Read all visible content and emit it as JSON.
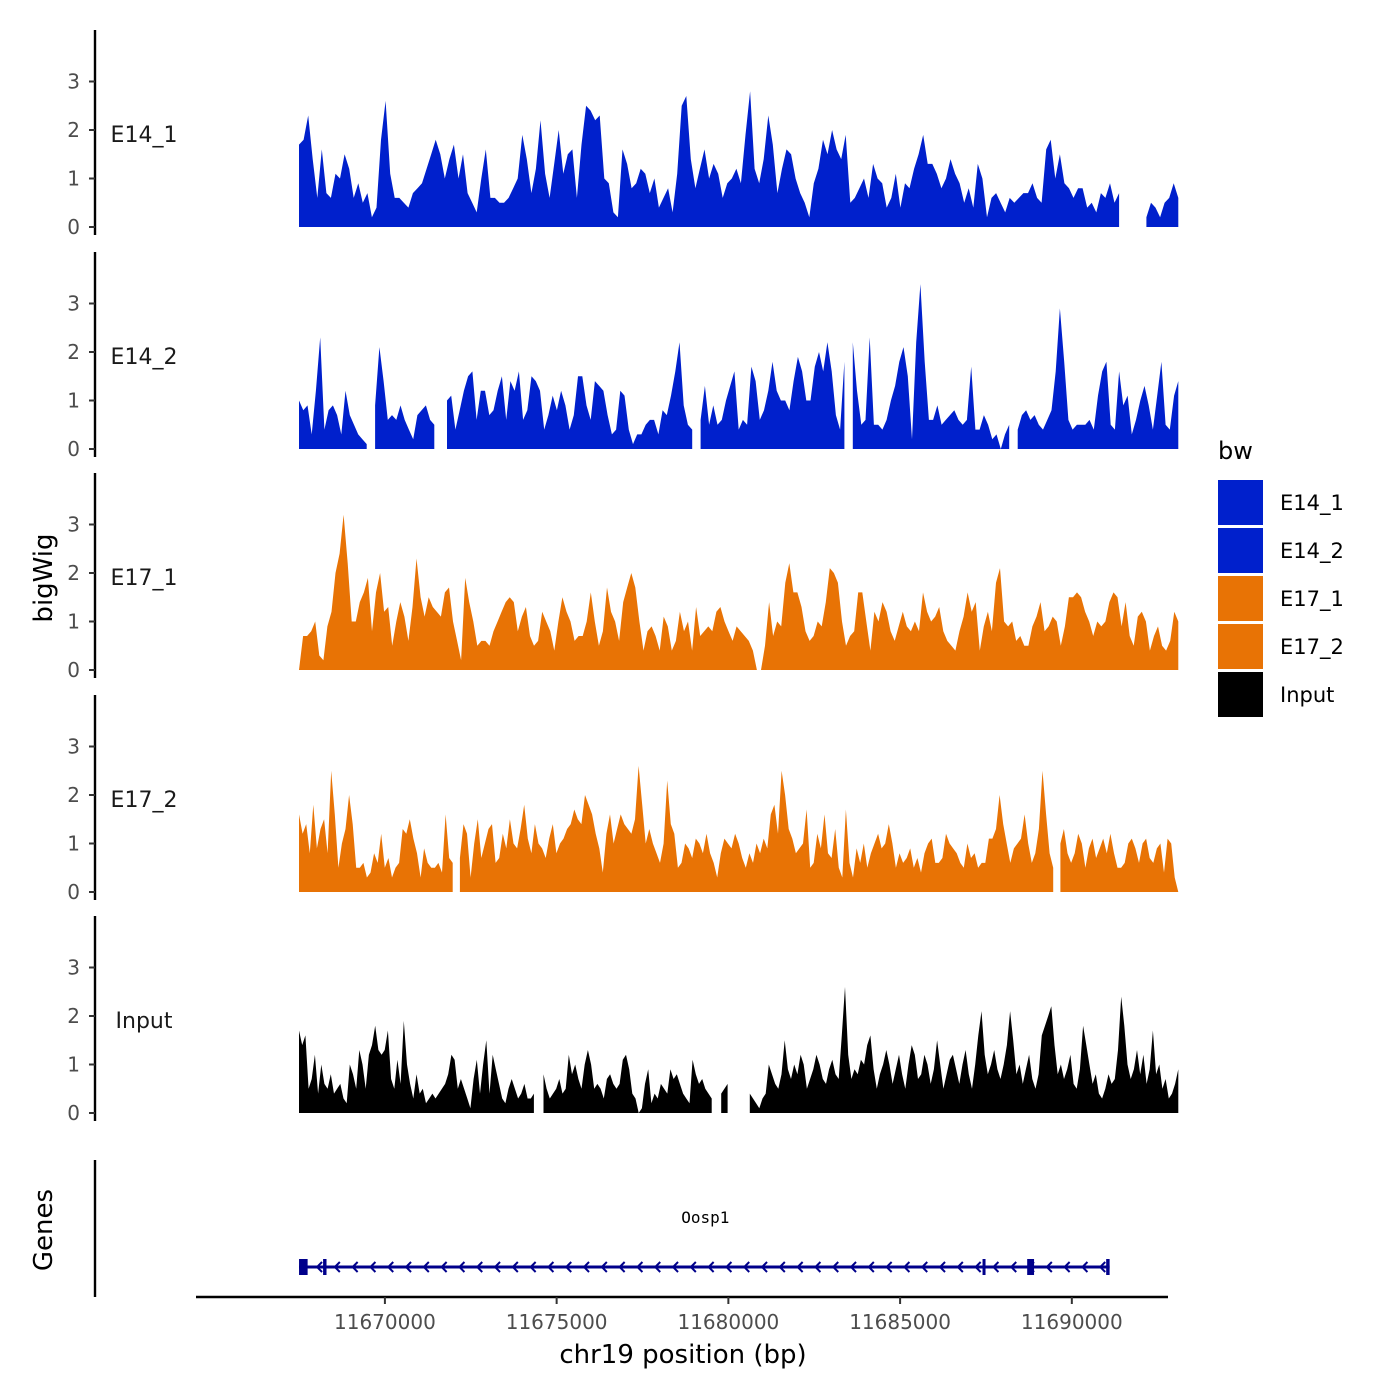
{
  "chart_data": {
    "type": "area",
    "x_title": "chr19 position (bp)",
    "y_title": "bigWig",
    "genes_title": "Genes",
    "xlim": [
      11664500,
      11692800
    ],
    "x_data_range": [
      11667500,
      11693100
    ],
    "x_ticks": [
      11670000,
      11675000,
      11680000,
      11685000,
      11690000
    ],
    "x_tick_labels": [
      "11670000",
      "11675000",
      "11680000",
      "11685000",
      "11690000"
    ],
    "ylim": [
      0,
      3.9
    ],
    "y_ticks": [
      0,
      1,
      2,
      3
    ],
    "y_tick_labels": [
      "0",
      "1",
      "2",
      "3"
    ],
    "legend_title": "bw",
    "tracks": [
      {
        "name": "E14_1",
        "color": "#0020CC",
        "values": [
          1.7,
          1.8,
          2.3,
          1.4,
          0.6,
          1.6,
          0.7,
          0.6,
          1.1,
          1.0,
          1.5,
          1.2,
          0.6,
          0.9,
          0.5,
          0.7,
          0.2,
          0.4,
          1.8,
          2.6,
          1.1,
          0.6,
          0.6,
          0.5,
          0.4,
          0.7,
          0.8,
          0.9,
          1.2,
          1.5,
          1.8,
          1.5,
          1.0,
          1.4,
          1.7,
          1.0,
          1.5,
          0.7,
          0.5,
          0.3,
          1.0,
          1.6,
          0.6,
          0.6,
          0.5,
          0.5,
          0.6,
          0.8,
          1.0,
          1.9,
          1.4,
          0.7,
          1.2,
          2.2,
          1.1,
          0.6,
          1.3,
          2.0,
          1.1,
          1.5,
          1.6,
          0.6,
          1.7,
          2.5,
          2.4,
          2.2,
          2.3,
          1.0,
          0.9,
          0.3,
          0.2,
          1.6,
          1.3,
          0.8,
          0.9,
          1.2,
          1.1,
          0.7,
          1.0,
          0.4,
          0.6,
          0.8,
          0.3,
          1.1,
          2.5,
          2.7,
          1.4,
          0.8,
          1.2,
          1.6,
          1.0,
          1.3,
          1.1,
          0.6,
          0.9,
          1.0,
          1.2,
          0.9,
          1.9,
          2.8,
          1.2,
          0.9,
          1.4,
          2.3,
          1.7,
          0.7,
          1.2,
          1.6,
          1.5,
          1.0,
          0.7,
          0.5,
          0.2,
          0.9,
          1.2,
          1.8,
          1.5,
          2.0,
          1.6,
          1.4,
          1.9,
          0.5,
          0.6,
          0.8,
          1.0,
          0.6,
          1.3,
          1.0,
          0.9,
          0.4,
          0.6,
          1.1,
          0.4,
          0.9,
          0.8,
          1.2,
          1.5,
          1.9,
          1.3,
          1.3,
          1.1,
          0.8,
          1.0,
          1.4,
          1.1,
          0.9,
          0.5,
          0.8,
          0.4,
          1.3,
          1.0,
          0.2,
          0.6,
          0.7,
          0.5,
          0.3,
          0.6,
          0.5,
          0.6,
          0.7,
          0.7,
          0.9,
          0.6,
          0.5,
          1.6,
          1.8,
          1.0,
          1.5,
          0.9,
          0.8,
          0.6,
          0.8,
          0.8,
          0.4,
          0.5,
          0.3,
          0.7,
          0.6,
          0.9,
          0.5,
          0.7,
          0.3,
          0.5,
          0.0,
          0.0,
          0.0,
          0.2,
          0.5,
          0.4,
          0.2,
          0.5,
          0.6,
          0.9,
          0.6
        ],
        "gaps": [
          [
            11691500,
            11692050
          ]
        ]
      },
      {
        "name": "E14_2",
        "color": "#0020CC",
        "values": [
          1.0,
          0.8,
          0.9,
          0.3,
          1.2,
          2.3,
          0.4,
          0.8,
          0.9,
          0.7,
          0.3,
          1.2,
          0.7,
          0.5,
          0.3,
          0.2,
          0.1,
          0.7,
          0.9,
          2.1,
          1.4,
          0.6,
          0.7,
          0.6,
          0.9,
          0.6,
          0.4,
          0.2,
          0.7,
          0.8,
          0.9,
          0.6,
          0.5,
          0.2,
          0.3,
          1.0,
          1.1,
          0.4,
          0.8,
          1.2,
          1.5,
          1.6,
          0.6,
          1.2,
          1.2,
          0.7,
          0.8,
          1.2,
          1.5,
          0.6,
          1.4,
          1.2,
          1.6,
          0.6,
          0.8,
          1.5,
          1.4,
          1.2,
          0.4,
          0.7,
          1.1,
          0.8,
          1.2,
          0.9,
          0.4,
          0.7,
          1.5,
          1.5,
          0.9,
          0.6,
          1.4,
          1.3,
          1.2,
          0.7,
          0.3,
          0.4,
          1.2,
          1.1,
          0.4,
          0.1,
          0.3,
          0.3,
          0.5,
          0.6,
          0.6,
          0.3,
          0.8,
          0.7,
          1.1,
          1.6,
          2.2,
          0.9,
          0.5,
          0.4,
          0.4,
          0.6,
          1.3,
          0.5,
          0.9,
          0.5,
          0.6,
          1.0,
          1.3,
          1.6,
          0.4,
          0.6,
          0.5,
          1.7,
          1.4,
          0.6,
          0.8,
          1.2,
          1.8,
          1.2,
          1.0,
          1.0,
          0.8,
          1.4,
          1.9,
          1.6,
          1.0,
          1.0,
          1.7,
          2.0,
          1.6,
          2.2,
          1.6,
          0.7,
          0.4,
          1.8,
          2.6,
          2.2,
          1.2,
          0.5,
          0.6,
          2.3,
          0.5,
          0.5,
          0.4,
          0.6,
          1.0,
          1.3,
          1.8,
          2.1,
          1.5,
          0.2,
          2.2,
          3.4,
          1.8,
          0.6,
          0.6,
          0.9,
          0.5,
          0.6,
          0.7,
          0.8,
          0.6,
          0.5,
          0.6,
          1.7,
          0.4,
          0.4,
          0.7,
          0.5,
          0.2,
          0.3,
          0.0,
          0.3,
          0.5,
          0.6,
          0.4,
          0.7,
          0.8,
          0.6,
          0.7,
          0.5,
          0.4,
          0.6,
          0.8,
          1.6,
          2.9,
          1.8,
          0.6,
          0.4,
          0.5,
          0.5,
          0.5,
          0.6,
          0.4,
          1.1,
          1.6,
          1.8,
          0.5,
          0.4,
          1.6,
          0.9,
          1.1,
          0.3,
          0.6,
          1.0,
          1.3,
          0.9,
          0.4,
          1.1,
          1.8,
          0.5,
          0.4,
          1.1,
          1.4
        ],
        "gaps": [
          [
            11669500,
            11669700
          ],
          [
            11671500,
            11671780
          ],
          [
            11679000,
            11679150
          ],
          [
            11683400,
            11683520
          ],
          [
            11688200,
            11688400
          ]
        ]
      },
      {
        "name": "E17_1",
        "color": "#E87305",
        "values": [
          0.0,
          0.7,
          0.7,
          0.8,
          1.0,
          0.3,
          0.2,
          0.9,
          1.2,
          2.0,
          2.4,
          3.2,
          2.2,
          1.0,
          1.0,
          1.4,
          1.6,
          1.9,
          0.8,
          1.6,
          2.0,
          1.2,
          1.3,
          0.5,
          1.0,
          1.4,
          1.1,
          0.6,
          1.3,
          2.3,
          1.5,
          1.1,
          1.5,
          1.3,
          1.2,
          1.1,
          1.6,
          1.7,
          1.0,
          0.6,
          0.2,
          1.9,
          1.4,
          1.0,
          0.5,
          0.6,
          0.6,
          0.5,
          0.8,
          1.0,
          1.2,
          1.4,
          1.5,
          1.4,
          0.8,
          1.1,
          1.3,
          0.7,
          0.5,
          0.6,
          1.2,
          1.0,
          0.8,
          0.4,
          1.0,
          1.5,
          1.2,
          1.0,
          0.6,
          0.7,
          0.7,
          1.0,
          1.6,
          1.0,
          0.5,
          0.8,
          1.7,
          1.2,
          1.0,
          0.6,
          1.4,
          1.7,
          2.0,
          1.7,
          1.0,
          0.4,
          0.8,
          0.9,
          0.7,
          0.4,
          1.1,
          0.9,
          0.4,
          0.6,
          1.2,
          0.8,
          1.0,
          0.4,
          1.3,
          0.7,
          0.8,
          0.9,
          0.8,
          1.2,
          1.3,
          1.0,
          0.8,
          0.6,
          0.9,
          0.8,
          0.7,
          0.6,
          0.4,
          0.0,
          0.0,
          0.5,
          1.4,
          0.7,
          1.0,
          0.9,
          1.8,
          2.2,
          1.6,
          1.6,
          1.3,
          0.8,
          0.6,
          0.7,
          1.0,
          0.9,
          1.4,
          2.1,
          2.0,
          1.8,
          1.0,
          0.5,
          0.7,
          0.8,
          1.6,
          1.6,
          1.0,
          0.4,
          1.2,
          1.0,
          1.4,
          1.2,
          0.8,
          0.6,
          0.9,
          1.2,
          0.9,
          0.8,
          1.0,
          0.8,
          1.6,
          1.2,
          1.0,
          1.1,
          1.3,
          0.8,
          0.6,
          0.5,
          0.4,
          0.8,
          1.1,
          1.6,
          1.2,
          1.4,
          0.4,
          0.9,
          1.2,
          0.8,
          1.8,
          2.1,
          1.0,
          0.9,
          1.0,
          0.6,
          0.7,
          0.5,
          0.5,
          0.9,
          1.1,
          1.4,
          0.8,
          0.9,
          1.1,
          1.0,
          0.5,
          0.9,
          1.5,
          1.5,
          1.6,
          1.5,
          1.2,
          1.0,
          0.7,
          1.0,
          0.9,
          1.0,
          1.4,
          1.6,
          1.5,
          0.9,
          1.4,
          0.7,
          0.5,
          1.1,
          1.2,
          1.0,
          0.4,
          0.7,
          0.9,
          0.5,
          0.4,
          0.6,
          1.2,
          1.0
        ],
        "gaps": [
          [
            11680250,
            11680350
          ]
        ]
      },
      {
        "name": "E17_2",
        "color": "#E87305",
        "values": [
          1.6,
          1.2,
          1.4,
          0.8,
          1.8,
          0.9,
          1.3,
          1.5,
          0.8,
          2.5,
          1.6,
          0.5,
          1.0,
          1.3,
          2.0,
          1.4,
          0.5,
          0.5,
          0.6,
          0.3,
          0.4,
          0.8,
          0.6,
          1.2,
          0.5,
          0.7,
          0.3,
          0.5,
          0.6,
          1.3,
          1.2,
          1.5,
          1.1,
          0.8,
          0.3,
          0.9,
          0.6,
          0.5,
          0.5,
          0.6,
          0.4,
          1.6,
          0.7,
          0.6,
          0.4,
          0.7,
          1.4,
          1.2,
          0.3,
          1.0,
          1.5,
          0.7,
          1.0,
          1.3,
          1.4,
          0.6,
          0.7,
          1.2,
          0.9,
          1.5,
          1.0,
          0.9,
          1.3,
          1.8,
          1.1,
          0.8,
          1.4,
          1.0,
          0.9,
          0.7,
          1.1,
          1.4,
          0.8,
          1.0,
          1.1,
          1.3,
          1.4,
          1.7,
          1.5,
          1.4,
          2.0,
          1.8,
          1.6,
          1.2,
          0.9,
          0.4,
          1.2,
          1.6,
          1.0,
          1.3,
          1.6,
          1.4,
          1.3,
          1.2,
          1.5,
          2.6,
          1.8,
          1.0,
          1.3,
          1.0,
          0.8,
          0.6,
          1.0,
          2.3,
          1.4,
          1.2,
          0.5,
          0.6,
          1.0,
          0.9,
          0.7,
          1.1,
          1.0,
          0.8,
          1.2,
          0.8,
          0.6,
          0.3,
          0.8,
          1.1,
          1.0,
          0.9,
          1.2,
          1.0,
          0.7,
          0.5,
          0.8,
          0.6,
          1.0,
          0.8,
          1.1,
          0.9,
          1.6,
          1.8,
          1.2,
          2.5,
          2.0,
          1.3,
          1.1,
          0.8,
          0.9,
          1.0,
          1.7,
          0.5,
          0.6,
          1.2,
          0.9,
          1.6,
          0.8,
          0.7,
          1.3,
          0.5,
          0.3,
          1.7,
          0.6,
          0.3,
          0.9,
          0.6,
          1.0,
          0.5,
          0.8,
          1.0,
          1.2,
          0.9,
          1.0,
          1.4,
          1.0,
          0.5,
          0.8,
          0.6,
          0.7,
          0.9,
          0.5,
          0.7,
          0.4,
          0.8,
          1.0,
          1.1,
          0.6,
          0.6,
          0.7,
          1.2,
          1.0,
          0.9,
          0.8,
          0.6,
          0.5,
          1.0,
          0.7,
          0.8,
          0.5,
          0.6,
          0.6,
          1.1,
          1.1,
          1.3,
          2.0,
          1.4,
          1.0,
          0.6,
          0.9,
          1.0,
          1.1,
          1.6,
          1.0,
          0.6,
          0.8,
          1.3,
          2.5,
          1.6,
          0.8,
          0.5,
          0.7,
          1.0,
          1.3,
          0.8,
          0.6,
          0.8,
          1.2,
          1.0,
          0.5,
          0.9,
          1.1,
          0.7,
          0.9,
          1.1,
          0.8,
          1.2,
          0.8,
          0.5,
          0.5,
          0.6,
          1.0,
          1.1,
          0.9,
          0.6,
          1.0,
          1.1,
          0.7,
          0.6,
          0.9,
          1.0,
          0.4,
          1.1,
          1.0,
          0.3,
          0.0
        ],
        "gaps": [
          [
            11672000,
            11672150
          ],
          [
            11689500,
            11689650
          ]
        ]
      },
      {
        "name": "Input",
        "color": "#000000",
        "values": [
          1.7,
          1.4,
          1.6,
          0.5,
          0.7,
          1.2,
          0.4,
          1.0,
          0.6,
          0.5,
          0.8,
          0.4,
          0.5,
          0.6,
          0.3,
          0.2,
          1.0,
          0.8,
          0.5,
          1.3,
          1.0,
          0.5,
          1.2,
          1.4,
          1.8,
          1.3,
          1.2,
          1.3,
          1.7,
          0.7,
          0.5,
          1.1,
          0.6,
          1.9,
          1.0,
          0.6,
          0.3,
          0.8,
          0.4,
          0.5,
          0.2,
          0.3,
          0.4,
          0.3,
          0.4,
          0.5,
          0.6,
          0.8,
          1.2,
          1.1,
          0.5,
          0.7,
          0.5,
          0.3,
          0.1,
          0.7,
          1.1,
          0.4,
          1.0,
          1.5,
          0.4,
          1.2,
          0.9,
          0.6,
          0.3,
          0.2,
          0.5,
          0.7,
          0.5,
          0.3,
          0.4,
          0.6,
          0.3,
          0.3,
          0.4,
          0.5,
          0.6,
          0.8,
          0.5,
          0.3,
          0.4,
          0.5,
          0.7,
          0.4,
          0.5,
          1.2,
          0.8,
          1.0,
          0.7,
          0.5,
          1.0,
          1.3,
          1.0,
          0.5,
          0.6,
          0.5,
          0.3,
          0.7,
          0.8,
          0.6,
          0.5,
          0.6,
          1.1,
          1.2,
          0.9,
          0.4,
          0.3,
          0.0,
          0.1,
          0.6,
          0.9,
          0.2,
          0.4,
          0.3,
          0.6,
          0.5,
          0.4,
          0.9,
          0.7,
          0.8,
          0.6,
          0.4,
          0.3,
          0.2,
          1.1,
          0.8,
          0.6,
          0.7,
          0.5,
          0.4,
          0.3,
          0.2,
          0.3,
          0.4,
          0.5,
          0.6,
          0.4,
          0.5,
          0.4,
          0.3,
          0.2,
          0.3,
          0.4,
          0.3,
          0.2,
          0.1,
          0.3,
          0.4,
          1.0,
          0.8,
          0.6,
          0.5,
          0.8,
          1.5,
          0.9,
          0.7,
          1.0,
          0.8,
          1.2,
          1.0,
          0.5,
          0.7,
          0.9,
          1.2,
          1.0,
          0.7,
          0.6,
          0.9,
          1.1,
          0.8,
          0.7,
          1.6,
          2.6,
          1.2,
          0.7,
          0.9,
          0.8,
          1.1,
          1.0,
          1.4,
          1.6,
          0.9,
          0.5,
          0.8,
          1.0,
          1.3,
          1.0,
          0.6,
          0.9,
          1.2,
          0.8,
          0.5,
          1.0,
          1.4,
          1.2,
          0.7,
          0.8,
          1.2,
          1.0,
          0.6,
          0.9,
          1.5,
          1.0,
          0.5,
          0.8,
          1.1,
          1.2,
          0.9,
          0.6,
          1.0,
          1.3,
          0.8,
          0.5,
          1.0,
          1.6,
          2.1,
          1.2,
          0.8,
          1.0,
          1.3,
          0.9,
          0.7,
          1.0,
          1.4,
          2.1,
          1.5,
          0.8,
          1.0,
          0.6,
          0.9,
          1.2,
          0.7,
          0.5,
          0.8,
          1.6,
          1.8,
          2.0,
          2.2,
          1.4,
          0.8,
          1.0,
          0.7,
          0.9,
          1.2,
          0.6,
          0.5,
          0.9,
          1.8,
          1.4,
          1.0,
          0.6,
          0.8,
          0.4,
          0.3,
          0.5,
          0.8,
          0.6,
          0.7,
          1.3,
          2.4,
          1.8,
          1.0,
          0.7,
          0.9,
          1.3,
          0.8,
          1.2,
          0.6,
          0.9,
          1.7,
          0.8,
          1.0,
          0.5,
          0.7,
          0.3,
          0.4,
          0.6,
          0.9
        ],
        "gaps": [
          [
            11674400,
            11674550
          ],
          [
            11679600,
            11679750
          ],
          [
            11680000,
            11680600
          ]
        ]
      }
    ],
    "gene": {
      "name": "Oosp1",
      "strand": "-",
      "start": 11667500,
      "end": 11691100,
      "exons": [
        [
          11667500,
          11667750
        ],
        [
          11668200,
          11668300
        ],
        [
          11687400,
          11687480
        ],
        [
          11688700,
          11688900
        ],
        [
          11691000,
          11691100
        ]
      ],
      "color": "#00008B"
    }
  }
}
